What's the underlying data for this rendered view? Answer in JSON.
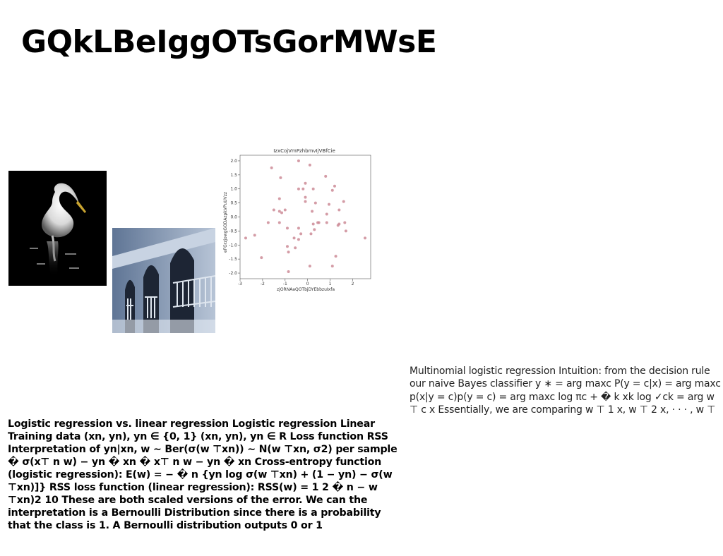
{
  "page": {
    "title": "GQkLBeIggOTsGorMWsE"
  },
  "images": {
    "heron": "heron photo",
    "arches": "arches photo"
  },
  "text_left": "Logistic regression vs. linear regression Logistic regression Linear Training data (xn, yn), yn ∈ {0, 1} (xn, yn), yn ∈ R Loss function RSS Interpretation of yn|xn, w ∼ Ber(σ(w ⊤xn)) ∼ N(w ⊤xn, σ2) per sample � σ(x⊤ n w) − yn � xn � x⊤ n w − yn � xn Cross-entropy function (logistic regression): E(w) = − � n {yn log σ(w ⊤xn) + (1 − yn) − σ(w ⊤xn)]} RSS loss function (linear regression): RSS(w) = 1 2 � n − w ⊤xn)2 10 These are both scaled versions of the error. We can the interpretation is a Bernoulli Distribution since there is a probability that the class is 1. A Bernoulli distribution outputs 0 or 1",
  "text_right": "Multinomial logistic regression Intuition: from the decision rule our naive Bayes classifier y ∗ = arg maxc P(y = c|x) = arg maxc p(x|y = c)p(y = c) = arg maxc log πc + � k xk log ✓ck = arg w ⊤ c x Essentially, we are comparing w ⊤ 1 x, w ⊤ 2 x, · · · , w ⊤",
  "chart_data": {
    "type": "scatter",
    "title": "IzxCojVmPzhbmvIjVBfCie",
    "xlabel": "zjORNAaQOTbjDYEbbzuIxfa",
    "ylabel": "eFGrzjowgGODAzpkVPuUVzz",
    "xlim": [
      -3,
      2.8
    ],
    "ylim": [
      -2.2,
      2.2
    ],
    "xticks": [
      -3,
      -2,
      -1,
      0,
      1,
      2
    ],
    "yticks": [
      -2.0,
      -1.5,
      -1.0,
      -0.5,
      0.0,
      0.5,
      1.0,
      1.5,
      2.0
    ],
    "color": "#cd8b96",
    "points": [
      [
        -1.6,
        1.75
      ],
      [
        -1.2,
        1.4
      ],
      [
        -0.4,
        2.0
      ],
      [
        0.1,
        1.85
      ],
      [
        0.8,
        1.45
      ],
      [
        1.2,
        1.1
      ],
      [
        1.1,
        0.95
      ],
      [
        -0.2,
        1.0
      ],
      [
        -0.4,
        1.0
      ],
      [
        -0.1,
        1.2
      ],
      [
        0.25,
        1.0
      ],
      [
        -0.1,
        0.7
      ],
      [
        0.35,
        0.5
      ],
      [
        -1.25,
        0.65
      ],
      [
        -1.5,
        0.25
      ],
      [
        -1.25,
        0.2
      ],
      [
        -1.0,
        0.25
      ],
      [
        -1.15,
        0.15
      ],
      [
        -0.1,
        0.55
      ],
      [
        0.95,
        0.45
      ],
      [
        1.6,
        0.55
      ],
      [
        1.4,
        0.25
      ],
      [
        0.2,
        0.2
      ],
      [
        0.85,
        0.1
      ],
      [
        0.85,
        -0.2
      ],
      [
        0.45,
        -0.2
      ],
      [
        0.25,
        -0.25
      ],
      [
        1.35,
        -0.3
      ],
      [
        1.4,
        -0.25
      ],
      [
        1.65,
        -0.2
      ],
      [
        1.7,
        -0.5
      ],
      [
        -1.75,
        -0.2
      ],
      [
        -1.25,
        -0.2
      ],
      [
        -0.9,
        -0.4
      ],
      [
        -0.4,
        -0.4
      ],
      [
        0.3,
        -0.45
      ],
      [
        -0.3,
        -0.6
      ],
      [
        -0.6,
        -0.75
      ],
      [
        0.15,
        -0.6
      ],
      [
        -2.75,
        -0.75
      ],
      [
        -2.35,
        -0.65
      ],
      [
        -0.4,
        -0.8
      ],
      [
        -0.9,
        -1.05
      ],
      [
        -0.55,
        -1.1
      ],
      [
        -0.85,
        -1.25
      ],
      [
        -2.05,
        -1.45
      ],
      [
        1.25,
        -1.4
      ],
      [
        1.1,
        -1.75
      ],
      [
        0.1,
        -1.75
      ],
      [
        -0.85,
        -1.95
      ],
      [
        2.55,
        -0.75
      ],
      [
        0.5,
        -0.2
      ]
    ]
  }
}
